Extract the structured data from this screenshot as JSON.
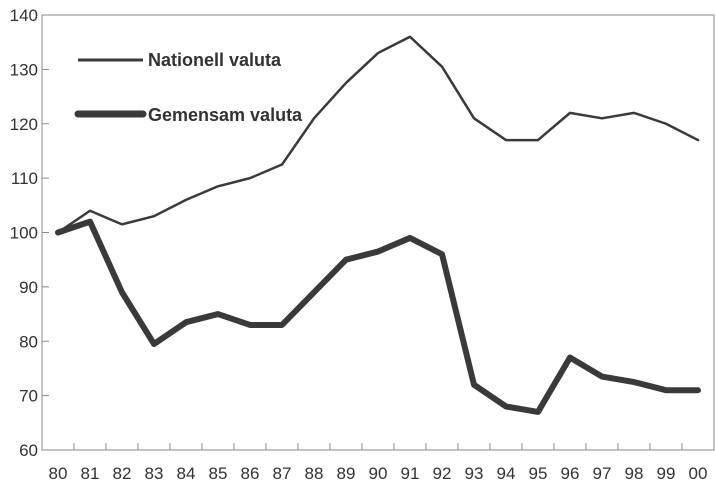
{
  "chart_data": {
    "type": "line",
    "title": "",
    "xlabel": "",
    "ylabel": "",
    "categories": [
      "80",
      "81",
      "82",
      "83",
      "84",
      "85",
      "86",
      "87",
      "88",
      "89",
      "90",
      "91",
      "92",
      "93",
      "94",
      "95",
      "96",
      "97",
      "98",
      "99",
      "00"
    ],
    "ylim": [
      60,
      140
    ],
    "yticks": [
      60,
      70,
      80,
      90,
      100,
      110,
      120,
      130,
      140
    ],
    "grid": false,
    "legend_position": "top-left",
    "series": [
      {
        "name": "Nationell valuta",
        "color": "#3a3a3a",
        "style": "thin",
        "values": [
          100,
          104,
          101.5,
          103,
          106,
          108.5,
          110,
          112.5,
          121,
          127.5,
          133,
          136,
          130.5,
          121,
          117,
          117,
          122,
          121,
          122,
          120,
          117
        ]
      },
      {
        "name": "Gemensam valuta",
        "color": "#3a3a3a",
        "style": "thick",
        "values": [
          100,
          102,
          89,
          79.5,
          83.5,
          85,
          83,
          83,
          89,
          95,
          96.5,
          99,
          96,
          72,
          68,
          67,
          77,
          73.5,
          72.5,
          71,
          71
        ]
      }
    ]
  }
}
